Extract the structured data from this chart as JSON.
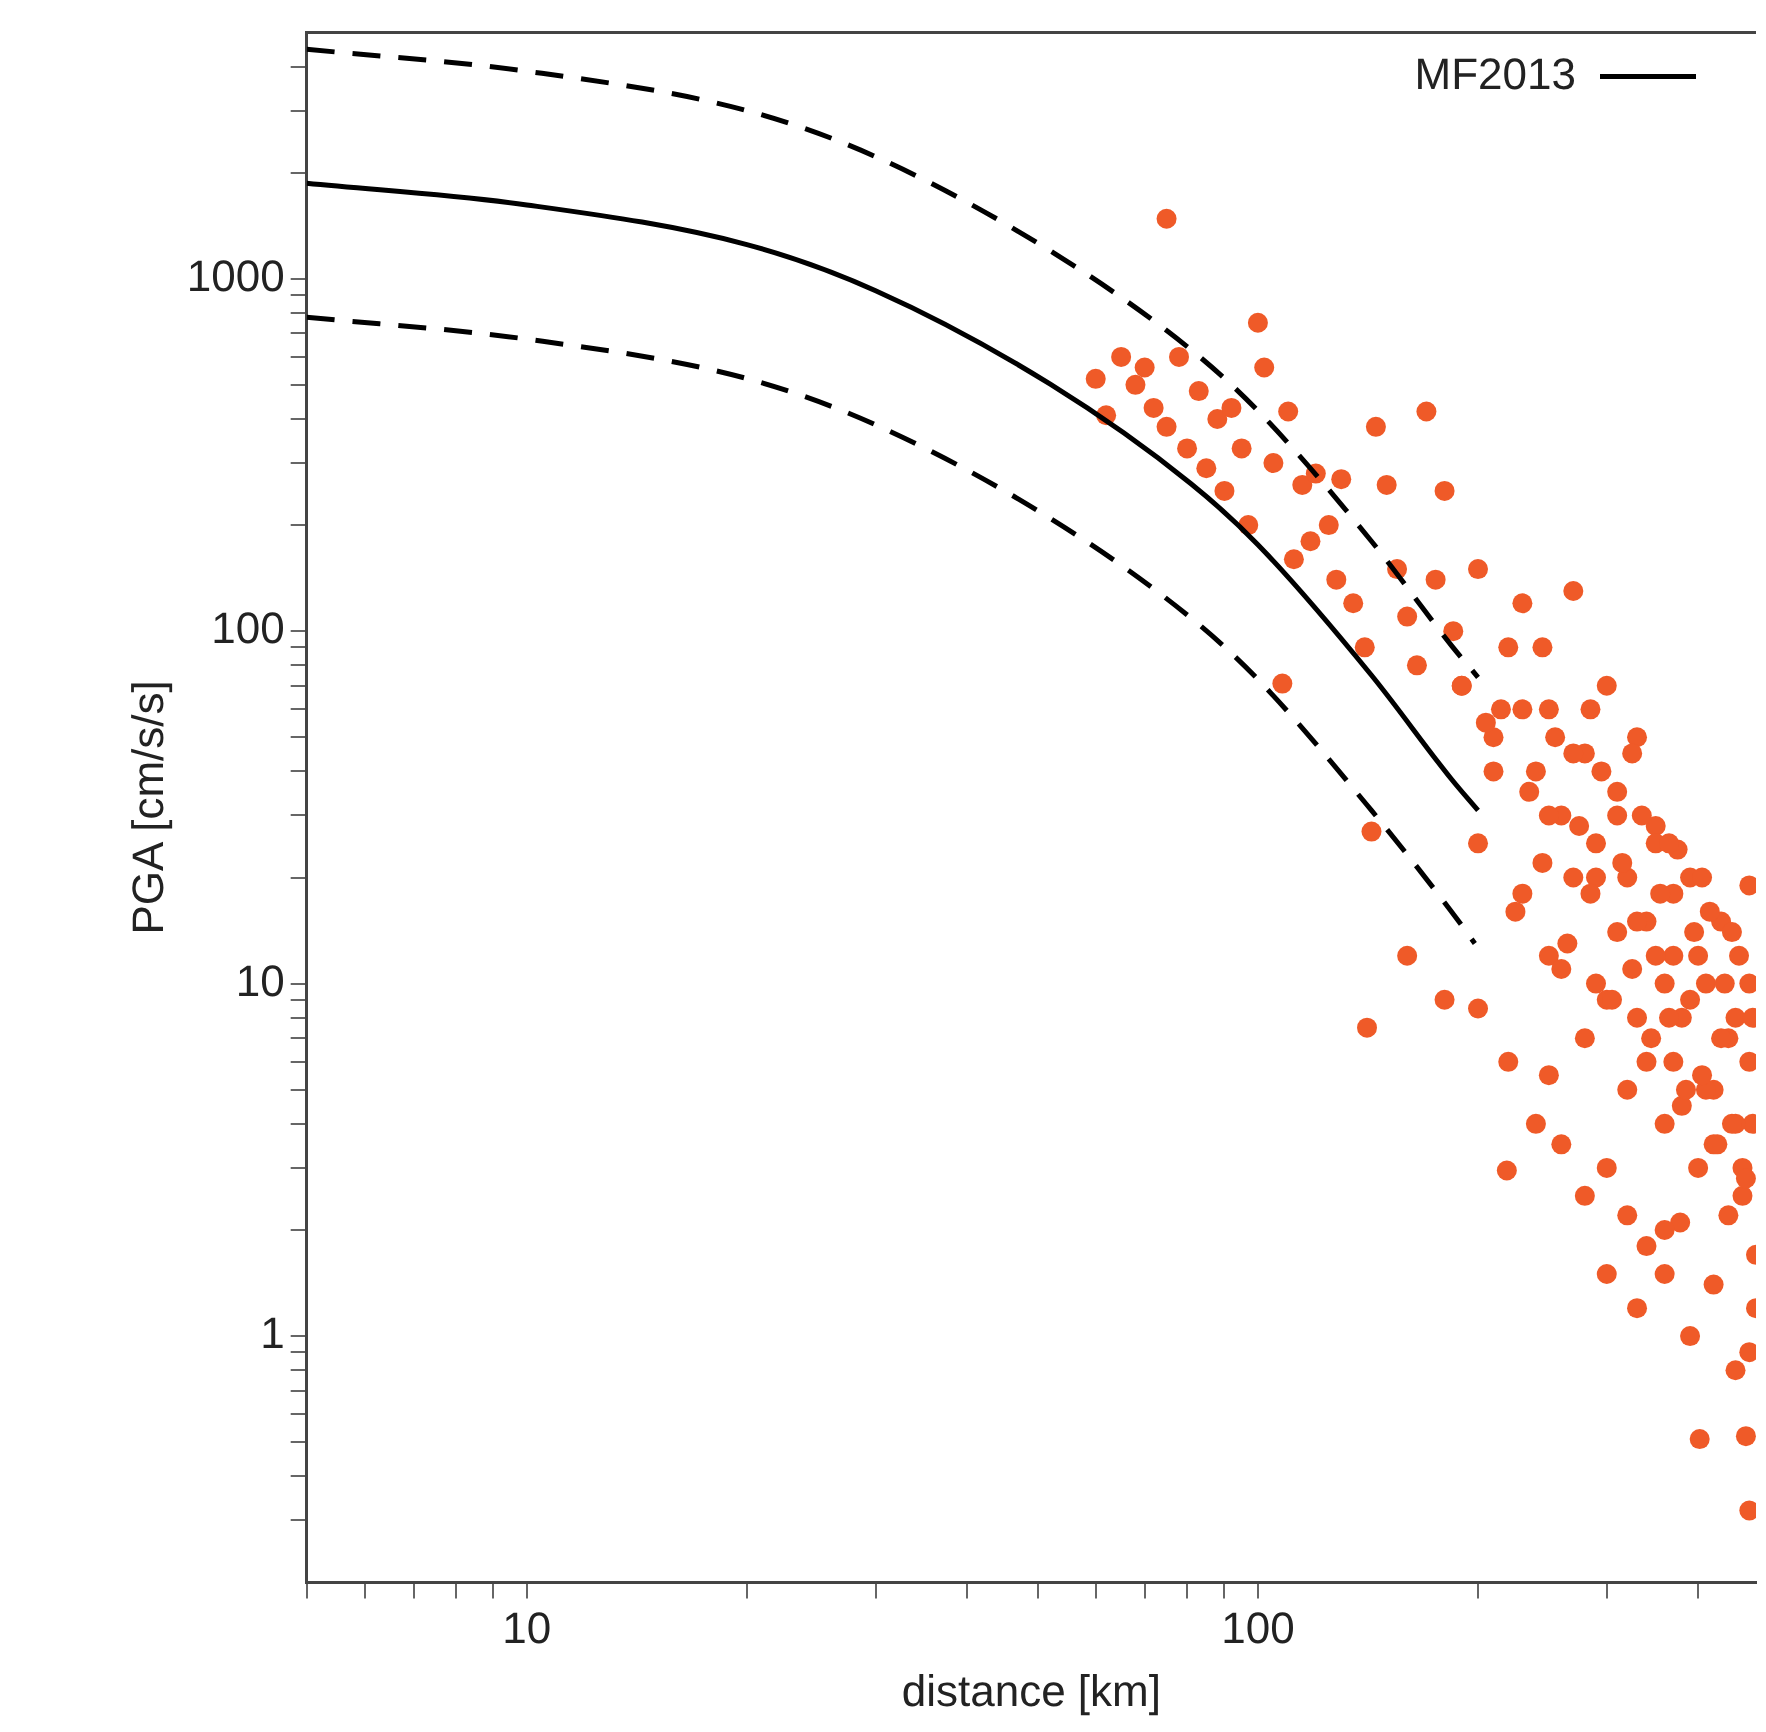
{
  "chart_data": {
    "type": "scatter",
    "xlabel": "distance [km]",
    "ylabel": "PGA [cm/s/s]",
    "log": "xy",
    "grid": false,
    "legend": "top right",
    "xlim": [
      5,
      480
    ],
    "ylim": [
      0.2,
      5000
    ],
    "xticks": [
      {
        "value": 5,
        "label": null
      },
      {
        "value": 6,
        "label": null
      },
      {
        "value": 7,
        "label": null
      },
      {
        "value": 8,
        "label": null
      },
      {
        "value": 9,
        "label": null
      },
      10,
      {
        "value": 20,
        "label": null
      },
      {
        "value": 30,
        "label": null
      },
      {
        "value": 40,
        "label": null
      },
      {
        "value": 50,
        "label": null
      },
      {
        "value": 60,
        "label": null
      },
      {
        "value": 70,
        "label": null
      },
      {
        "value": 80,
        "label": null
      },
      {
        "value": 90,
        "label": null
      },
      100,
      {
        "value": 200,
        "label": null
      },
      {
        "value": 300,
        "label": null
      },
      {
        "value": 400,
        "label": null
      }
    ],
    "yticks": [
      {
        "value": 0.3,
        "label": null
      },
      {
        "value": 0.4,
        "label": null
      },
      {
        "value": 0.5,
        "label": null
      },
      {
        "value": 0.6,
        "label": null
      },
      {
        "value": 0.7,
        "label": null
      },
      {
        "value": 0.8,
        "label": null
      },
      {
        "value": 0.9,
        "label": null
      },
      1,
      {
        "value": 2,
        "label": null
      },
      {
        "value": 3,
        "label": null
      },
      {
        "value": 4,
        "label": null
      },
      {
        "value": 5,
        "label": null
      },
      {
        "value": 6,
        "label": null
      },
      {
        "value": 7,
        "label": null
      },
      {
        "value": 8,
        "label": null
      },
      {
        "value": 9,
        "label": null
      },
      10,
      {
        "value": 20,
        "label": null
      },
      {
        "value": 30,
        "label": null
      },
      {
        "value": 40,
        "label": null
      },
      {
        "value": 50,
        "label": null
      },
      {
        "value": 60,
        "label": null
      },
      {
        "value": 70,
        "label": null
      },
      {
        "value": 80,
        "label": null
      },
      {
        "value": 90,
        "label": null
      },
      100,
      {
        "value": 200,
        "label": null
      },
      {
        "value": 300,
        "label": null
      },
      {
        "value": 400,
        "label": null
      },
      {
        "value": 500,
        "label": null
      },
      {
        "value": 600,
        "label": null
      },
      {
        "value": 700,
        "label": null
      },
      {
        "value": 800,
        "label": null
      },
      {
        "value": 900,
        "label": null
      },
      1000,
      {
        "value": 2000,
        "label": null
      },
      {
        "value": 3000,
        "label": null
      },
      {
        "value": 4000,
        "label": null
      }
    ],
    "series": [
      {
        "type": "scatter",
        "color": "#ef5a28",
        "marker": "circle",
        "x": [
          75,
          60,
          62,
          65,
          68,
          70,
          72,
          75,
          78,
          80,
          83,
          85,
          88,
          90,
          92,
          95,
          97,
          100,
          102,
          105,
          108,
          110,
          112,
          115,
          118,
          120,
          125,
          128,
          130,
          135,
          140,
          143,
          145,
          150,
          155,
          160,
          165,
          170,
          175,
          180,
          185,
          190,
          200,
          210,
          220,
          230,
          240,
          250,
          260,
          270,
          280,
          290,
          300,
          310,
          320,
          330,
          340,
          350,
          360,
          370,
          380,
          400,
          420,
          440,
          460,
          470,
          475,
          141,
          160,
          180,
          200,
          220,
          250,
          219,
          240,
          260,
          280,
          300,
          320,
          340,
          360,
          378,
          402,
          470,
          465,
          480,
          200,
          210,
          230,
          250,
          270,
          290,
          310,
          330,
          350,
          370,
          390,
          410,
          430,
          450,
          470,
          230,
          250,
          270,
          290,
          310,
          330,
          350,
          370,
          390,
          410,
          430,
          450,
          470,
          260,
          280,
          300,
          320,
          340,
          360,
          380,
          400,
          420,
          440,
          460,
          300,
          330,
          360,
          390,
          420,
          450,
          480,
          470,
          215,
          235,
          255,
          275,
          295,
          315,
          335,
          355,
          375,
          395,
          415,
          435,
          455,
          475,
          225,
          245,
          265,
          285,
          305,
          325,
          345,
          365,
          385,
          405,
          425,
          445,
          465,
          190,
          205,
          245,
          285,
          325,
          365,
          405,
          445
        ],
        "values": [
          1480,
          520,
          410,
          600,
          500,
          560,
          430,
          380,
          600,
          330,
          480,
          290,
          400,
          250,
          430,
          330,
          200,
          750,
          560,
          300,
          71,
          420,
          160,
          260,
          180,
          280,
          200,
          140,
          270,
          120,
          90,
          27,
          380,
          260,
          150,
          110,
          80,
          420,
          140,
          250,
          100,
          70,
          150,
          50,
          90,
          120,
          40,
          60,
          30,
          130,
          45,
          25,
          70,
          35,
          20,
          50,
          15,
          28,
          10,
          18,
          8,
          12,
          5,
          7,
          3,
          19,
          4,
          7.5,
          12,
          9,
          8.5,
          6,
          5.5,
          2.95,
          4,
          3.5,
          2.5,
          3,
          2.2,
          1.8,
          1.5,
          2.1,
          0.51,
          0.32,
          0.52,
          1.2,
          25,
          40,
          60,
          30,
          45,
          20,
          30,
          15,
          25,
          12,
          20,
          10,
          15,
          8,
          10,
          18,
          12,
          20,
          10,
          14,
          8,
          12,
          6,
          9,
          5,
          7,
          4,
          6,
          11,
          7,
          9,
          5,
          6,
          4,
          4.5,
          3,
          3.5,
          2.2,
          2.5,
          1.5,
          1.2,
          2,
          1,
          1.4,
          0.8,
          1.7,
          0.9,
          60,
          35,
          50,
          28,
          40,
          22,
          30,
          18,
          24,
          14,
          16,
          10,
          12,
          8,
          16,
          22,
          13,
          18,
          9,
          11,
          7,
          8,
          5,
          5.5,
          3.5,
          4,
          2.8,
          70,
          55,
          90,
          60,
          45,
          25,
          20,
          14
        ]
      },
      {
        "type": "line",
        "name": "MF2013",
        "color": "#000000",
        "line_style": "solid",
        "x": [
          5,
          10,
          20,
          30,
          52,
          81,
          100,
          143,
          184,
          200
        ],
        "values": [
          1866,
          1620,
          1250,
          925,
          502,
          262,
          176,
          75,
          38,
          31
        ]
      },
      {
        "type": "line",
        "color": "#000000",
        "line_style": "dashed",
        "x": [
          5,
          10,
          20,
          30,
          52,
          81,
          100,
          143,
          184,
          200
        ],
        "values": [
          4480,
          3880,
          3000,
          2220,
          1200,
          629,
          422,
          180,
          91,
          74
        ]
      },
      {
        "type": "line",
        "color": "#000000",
        "line_style": "dashed",
        "x": [
          5,
          10,
          20,
          30,
          52,
          81,
          100,
          143,
          184,
          198
        ],
        "values": [
          778,
          674,
          521,
          385,
          209,
          109,
          73,
          31,
          16,
          13
        ]
      }
    ]
  }
}
